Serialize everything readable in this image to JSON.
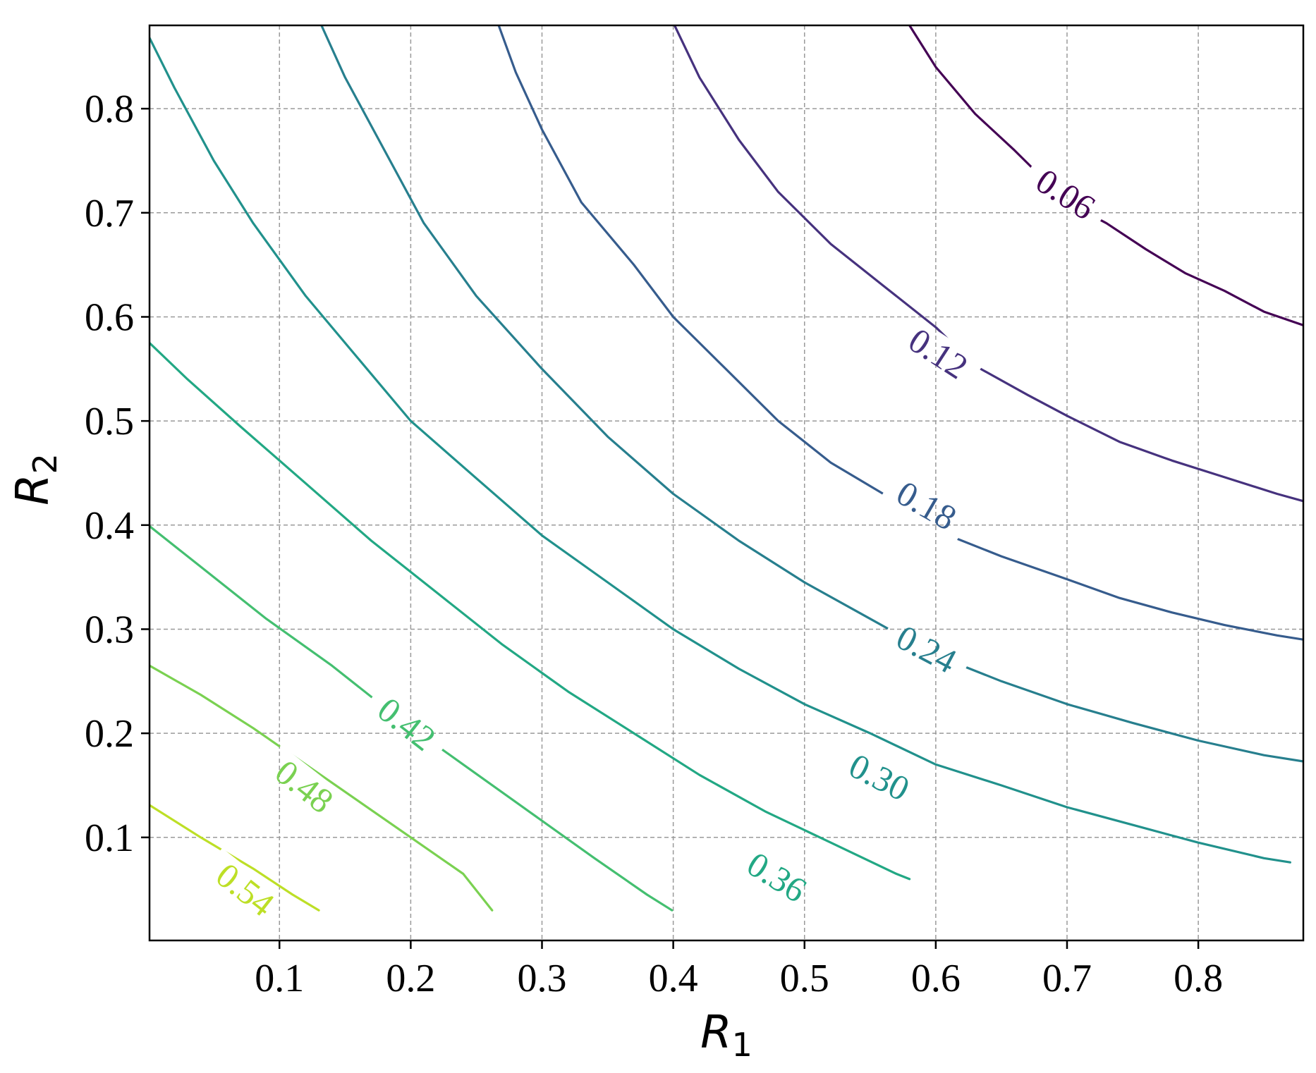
{
  "chart_data": {
    "type": "contour",
    "xlabel": {
      "base": "R",
      "sub": "1"
    },
    "ylabel": {
      "base": "R",
      "sub": "2"
    },
    "xlim": [
      0.001,
      0.88
    ],
    "ylim": [
      0.001,
      0.88
    ],
    "grid": true,
    "x_ticks": [
      {
        "value": 0.1,
        "label": "0.1"
      },
      {
        "value": 0.2,
        "label": "0.2"
      },
      {
        "value": 0.3,
        "label": "0.3"
      },
      {
        "value": 0.4,
        "label": "0.4"
      },
      {
        "value": 0.5,
        "label": "0.5"
      },
      {
        "value": 0.6,
        "label": "0.6"
      },
      {
        "value": 0.7,
        "label": "0.7"
      },
      {
        "value": 0.8,
        "label": "0.8"
      }
    ],
    "y_ticks": [
      {
        "value": 0.1,
        "label": "0.1"
      },
      {
        "value": 0.2,
        "label": "0.2"
      },
      {
        "value": 0.3,
        "label": "0.3"
      },
      {
        "value": 0.4,
        "label": "0.4"
      },
      {
        "value": 0.5,
        "label": "0.5"
      },
      {
        "value": 0.6,
        "label": "0.6"
      },
      {
        "value": 0.7,
        "label": "0.7"
      },
      {
        "value": 0.8,
        "label": "0.8"
      }
    ],
    "contours": [
      {
        "level": 0.06,
        "label": "0.06",
        "color": "#440154",
        "points": [
          [
            0.58,
            0.88
          ],
          [
            0.6,
            0.84
          ],
          [
            0.63,
            0.795
          ],
          [
            0.66,
            0.76
          ],
          [
            0.68,
            0.735
          ],
          [
            0.7,
            0.71
          ],
          [
            0.73,
            0.69
          ],
          [
            0.76,
            0.665
          ],
          [
            0.79,
            0.642
          ],
          [
            0.82,
            0.625
          ],
          [
            0.85,
            0.605
          ],
          [
            0.88,
            0.592
          ]
        ],
        "label_at": [
          0.699,
          0.718
        ],
        "label_angle": 33
      },
      {
        "level": 0.12,
        "label": "0.12",
        "color": "#46327e",
        "points": [
          [
            0.401,
            0.88
          ],
          [
            0.42,
            0.83
          ],
          [
            0.45,
            0.77
          ],
          [
            0.48,
            0.72
          ],
          [
            0.52,
            0.67
          ],
          [
            0.56,
            0.63
          ],
          [
            0.6,
            0.59
          ],
          [
            0.63,
            0.553
          ],
          [
            0.67,
            0.525
          ],
          [
            0.7,
            0.505
          ],
          [
            0.74,
            0.48
          ],
          [
            0.78,
            0.462
          ],
          [
            0.82,
            0.446
          ],
          [
            0.86,
            0.43
          ],
          [
            0.88,
            0.423
          ]
        ],
        "label_at": [
          0.602,
          0.565
        ],
        "label_angle": 33
      },
      {
        "level": 0.18,
        "label": "0.18",
        "color": "#365c8d",
        "points": [
          [
            0.267,
            0.88
          ],
          [
            0.28,
            0.835
          ],
          [
            0.3,
            0.78
          ],
          [
            0.33,
            0.71
          ],
          [
            0.37,
            0.65
          ],
          [
            0.4,
            0.6
          ],
          [
            0.44,
            0.55
          ],
          [
            0.48,
            0.5
          ],
          [
            0.52,
            0.46
          ],
          [
            0.56,
            0.43
          ],
          [
            0.6,
            0.395
          ],
          [
            0.65,
            0.37
          ],
          [
            0.7,
            0.348
          ],
          [
            0.74,
            0.33
          ],
          [
            0.78,
            0.316
          ],
          [
            0.82,
            0.304
          ],
          [
            0.86,
            0.294
          ],
          [
            0.88,
            0.29
          ]
        ],
        "label_at": [
          0.593,
          0.419
        ],
        "label_angle": 30
      },
      {
        "level": 0.24,
        "label": "0.24",
        "color": "#277f8e",
        "points": [
          [
            0.132,
            0.88
          ],
          [
            0.15,
            0.83
          ],
          [
            0.18,
            0.76
          ],
          [
            0.21,
            0.69
          ],
          [
            0.25,
            0.62
          ],
          [
            0.3,
            0.55
          ],
          [
            0.35,
            0.485
          ],
          [
            0.4,
            0.43
          ],
          [
            0.45,
            0.385
          ],
          [
            0.5,
            0.345
          ],
          [
            0.55,
            0.31
          ],
          [
            0.6,
            0.275
          ],
          [
            0.65,
            0.25
          ],
          [
            0.7,
            0.228
          ],
          [
            0.75,
            0.21
          ],
          [
            0.8,
            0.193
          ],
          [
            0.85,
            0.179
          ],
          [
            0.88,
            0.173
          ]
        ],
        "label_at": [
          0.593,
          0.281
        ],
        "label_angle": 28
      },
      {
        "level": 0.3,
        "label": "0.30",
        "color": "#21918c",
        "points": [
          [
            0.001,
            0.868
          ],
          [
            0.02,
            0.82
          ],
          [
            0.05,
            0.75
          ],
          [
            0.08,
            0.69
          ],
          [
            0.12,
            0.62
          ],
          [
            0.16,
            0.56
          ],
          [
            0.2,
            0.5
          ],
          [
            0.25,
            0.445
          ],
          [
            0.3,
            0.39
          ],
          [
            0.35,
            0.345
          ],
          [
            0.4,
            0.3
          ],
          [
            0.45,
            0.262
          ],
          [
            0.5,
            0.228
          ],
          [
            0.55,
            0.2
          ],
          [
            0.6,
            0.17
          ],
          [
            0.65,
            0.15
          ],
          [
            0.7,
            0.129
          ],
          [
            0.75,
            0.112
          ],
          [
            0.8,
            0.095
          ],
          [
            0.85,
            0.08
          ],
          [
            0.87,
            0.076
          ]
        ],
        "label_at": [
          0.557,
          0.158
        ],
        "label_angle": 27
      },
      {
        "level": 0.36,
        "label": "0.36",
        "color": "#22a884",
        "points": [
          [
            0.001,
            0.575
          ],
          [
            0.03,
            0.54
          ],
          [
            0.07,
            0.495
          ],
          [
            0.12,
            0.44
          ],
          [
            0.17,
            0.385
          ],
          [
            0.22,
            0.335
          ],
          [
            0.27,
            0.285
          ],
          [
            0.32,
            0.24
          ],
          [
            0.37,
            0.2
          ],
          [
            0.42,
            0.16
          ],
          [
            0.47,
            0.125
          ],
          [
            0.52,
            0.095
          ],
          [
            0.57,
            0.065
          ],
          [
            0.58,
            0.06
          ]
        ],
        "label_at": [
          0.479,
          0.062
        ],
        "label_angle": 32
      },
      {
        "level": 0.42,
        "label": "0.42",
        "color": "#44bf70",
        "points": [
          [
            0.001,
            0.399
          ],
          [
            0.04,
            0.36
          ],
          [
            0.09,
            0.31
          ],
          [
            0.14,
            0.265
          ],
          [
            0.19,
            0.215
          ],
          [
            0.24,
            0.17
          ],
          [
            0.29,
            0.125
          ],
          [
            0.34,
            0.08
          ],
          [
            0.38,
            0.045
          ],
          [
            0.399,
            0.03
          ]
        ],
        "label_at": [
          0.197,
          0.209
        ],
        "label_angle": 38
      },
      {
        "level": 0.48,
        "label": "0.48",
        "color": "#7ad151",
        "points": [
          [
            0.001,
            0.265
          ],
          [
            0.04,
            0.237
          ],
          [
            0.08,
            0.205
          ],
          [
            0.12,
            0.17
          ],
          [
            0.16,
            0.135
          ],
          [
            0.2,
            0.1
          ],
          [
            0.24,
            0.065
          ],
          [
            0.262,
            0.03
          ]
        ],
        "label_at": [
          0.119,
          0.149
        ],
        "label_angle": 38
      },
      {
        "level": 0.54,
        "label": "0.54",
        "color": "#bddf26",
        "points": [
          [
            0.001,
            0.131
          ],
          [
            0.04,
            0.1
          ],
          [
            0.08,
            0.07
          ],
          [
            0.11,
            0.045
          ],
          [
            0.13,
            0.03
          ]
        ],
        "label_at": [
          0.074,
          0.05
        ],
        "label_angle": 38
      }
    ]
  }
}
